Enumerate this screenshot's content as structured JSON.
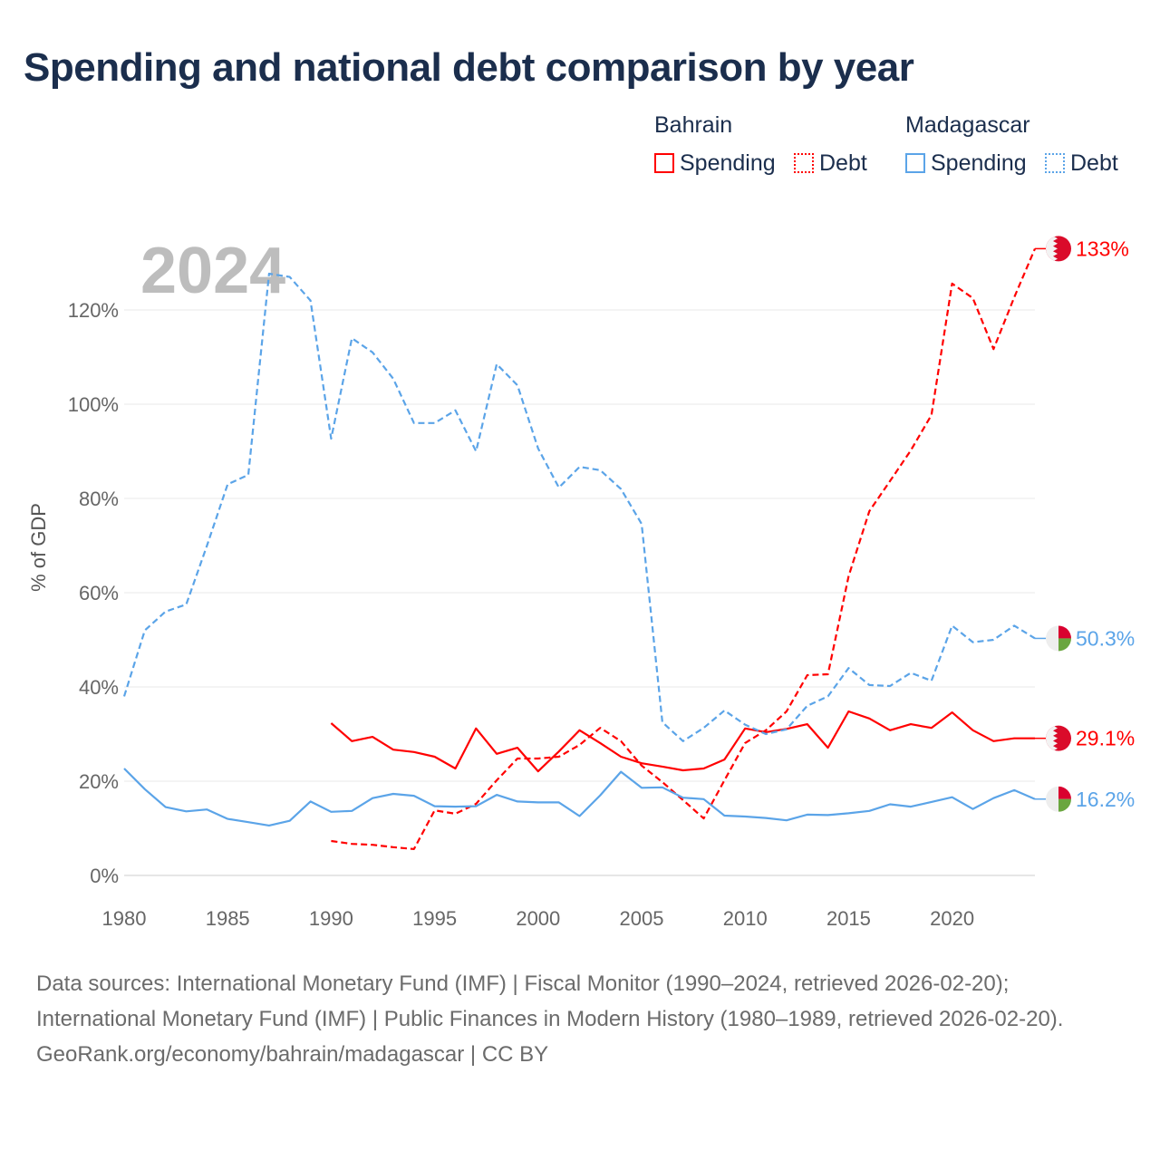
{
  "title": "Spending and national debt comparison by year",
  "legend": {
    "groups": [
      {
        "name": "Bahrain",
        "color": "#ff0000",
        "items": [
          "Spending",
          "Debt"
        ]
      },
      {
        "name": "Madagascar",
        "color": "#5ba4e8",
        "items": [
          "Spending",
          "Debt"
        ]
      }
    ]
  },
  "year_label": "2024",
  "sources": {
    "line1": "Data sources: International Monetary Fund (IMF) | Fiscal Monitor (1990–2024, retrieved 2026-02-20); International Monetary Fund (IMF) | Public Finances in Modern History (1980–1989, retrieved 2026-02-20).",
    "line2": "GeoRank.org/economy/bahrain/madagascar | CC BY"
  },
  "chart_data": {
    "type": "line",
    "title": "Spending and national debt comparison by year",
    "xlabel": "",
    "ylabel": "% of GDP",
    "xlim": [
      1980,
      2024
    ],
    "ylim": [
      0,
      135
    ],
    "xticks": [
      1980,
      1985,
      1990,
      1995,
      2000,
      2005,
      2010,
      2015,
      2020
    ],
    "yticks": [
      0,
      20,
      40,
      60,
      80,
      100,
      120
    ],
    "ytick_labels": [
      "0%",
      "20%",
      "40%",
      "60%",
      "80%",
      "100%",
      "120%"
    ],
    "grid": true,
    "legend_position": "top-right",
    "series": [
      {
        "name": "Bahrain Spending",
        "color": "#ff0000",
        "dash": false,
        "start": 1990,
        "end_label": "29.1%",
        "values": [
          32.3,
          28.5,
          29.4,
          26.7,
          26.2,
          25.2,
          22.7,
          31.2,
          25.8,
          27.1,
          22.1,
          26.3,
          30.8,
          28.1,
          25.2,
          23.8,
          23.1,
          22.3,
          22.7,
          24.6,
          31.2,
          30.4,
          31.1,
          32.1,
          27.1,
          34.8,
          33.3,
          30.8,
          32.1,
          31.3,
          34.6,
          30.8,
          28.5,
          29.1,
          29.1
        ]
      },
      {
        "name": "Bahrain Debt",
        "color": "#ff0000",
        "dash": true,
        "start": 1990,
        "end_label": "133%",
        "values": [
          7.3,
          6.7,
          6.5,
          6.0,
          5.6,
          13.8,
          13.1,
          15.2,
          20.2,
          24.8,
          24.8,
          25.2,
          27.7,
          31.3,
          28.5,
          23.3,
          19.8,
          16.0,
          12.1,
          20.2,
          28.1,
          30.8,
          34.8,
          42.5,
          42.7,
          63.5,
          77.3,
          83.7,
          90.2,
          97.7,
          125.6,
          122.5,
          111.7,
          122.7,
          133
        ]
      },
      {
        "name": "Madagascar Spending",
        "color": "#5ba4e8",
        "dash": false,
        "start": 1980,
        "end_label": "16.2%",
        "values": [
          22.7,
          18.3,
          14.5,
          13.6,
          14.0,
          12.0,
          11.3,
          10.6,
          11.6,
          15.7,
          13.5,
          13.7,
          16.4,
          17.3,
          16.9,
          14.7,
          14.6,
          14.7,
          17.1,
          15.7,
          15.5,
          15.5,
          12.6,
          17.0,
          22.0,
          18.6,
          18.7,
          16.5,
          16.2,
          12.7,
          12.5,
          12.2,
          11.7,
          12.9,
          12.8,
          13.2,
          13.7,
          15.1,
          14.6,
          15.6,
          16.6,
          14.1,
          16.4,
          18.1,
          16.2
        ]
      },
      {
        "name": "Madagascar Debt",
        "color": "#5ba4e8",
        "dash": true,
        "start": 1980,
        "end_label": "50.3%",
        "values": [
          38,
          52,
          56,
          57.5,
          70,
          83,
          85,
          127.7,
          127,
          122,
          92.7,
          114,
          111,
          105.4,
          96,
          96,
          98.7,
          90,
          108.5,
          104,
          90.6,
          82.3,
          86.7,
          86,
          82,
          74.6,
          32.5,
          28.5,
          31.3,
          35,
          32,
          30,
          31,
          36,
          38,
          44,
          40.4,
          40.2,
          43,
          41.3,
          53,
          49.5,
          50,
          53,
          50.3
        ]
      }
    ]
  }
}
